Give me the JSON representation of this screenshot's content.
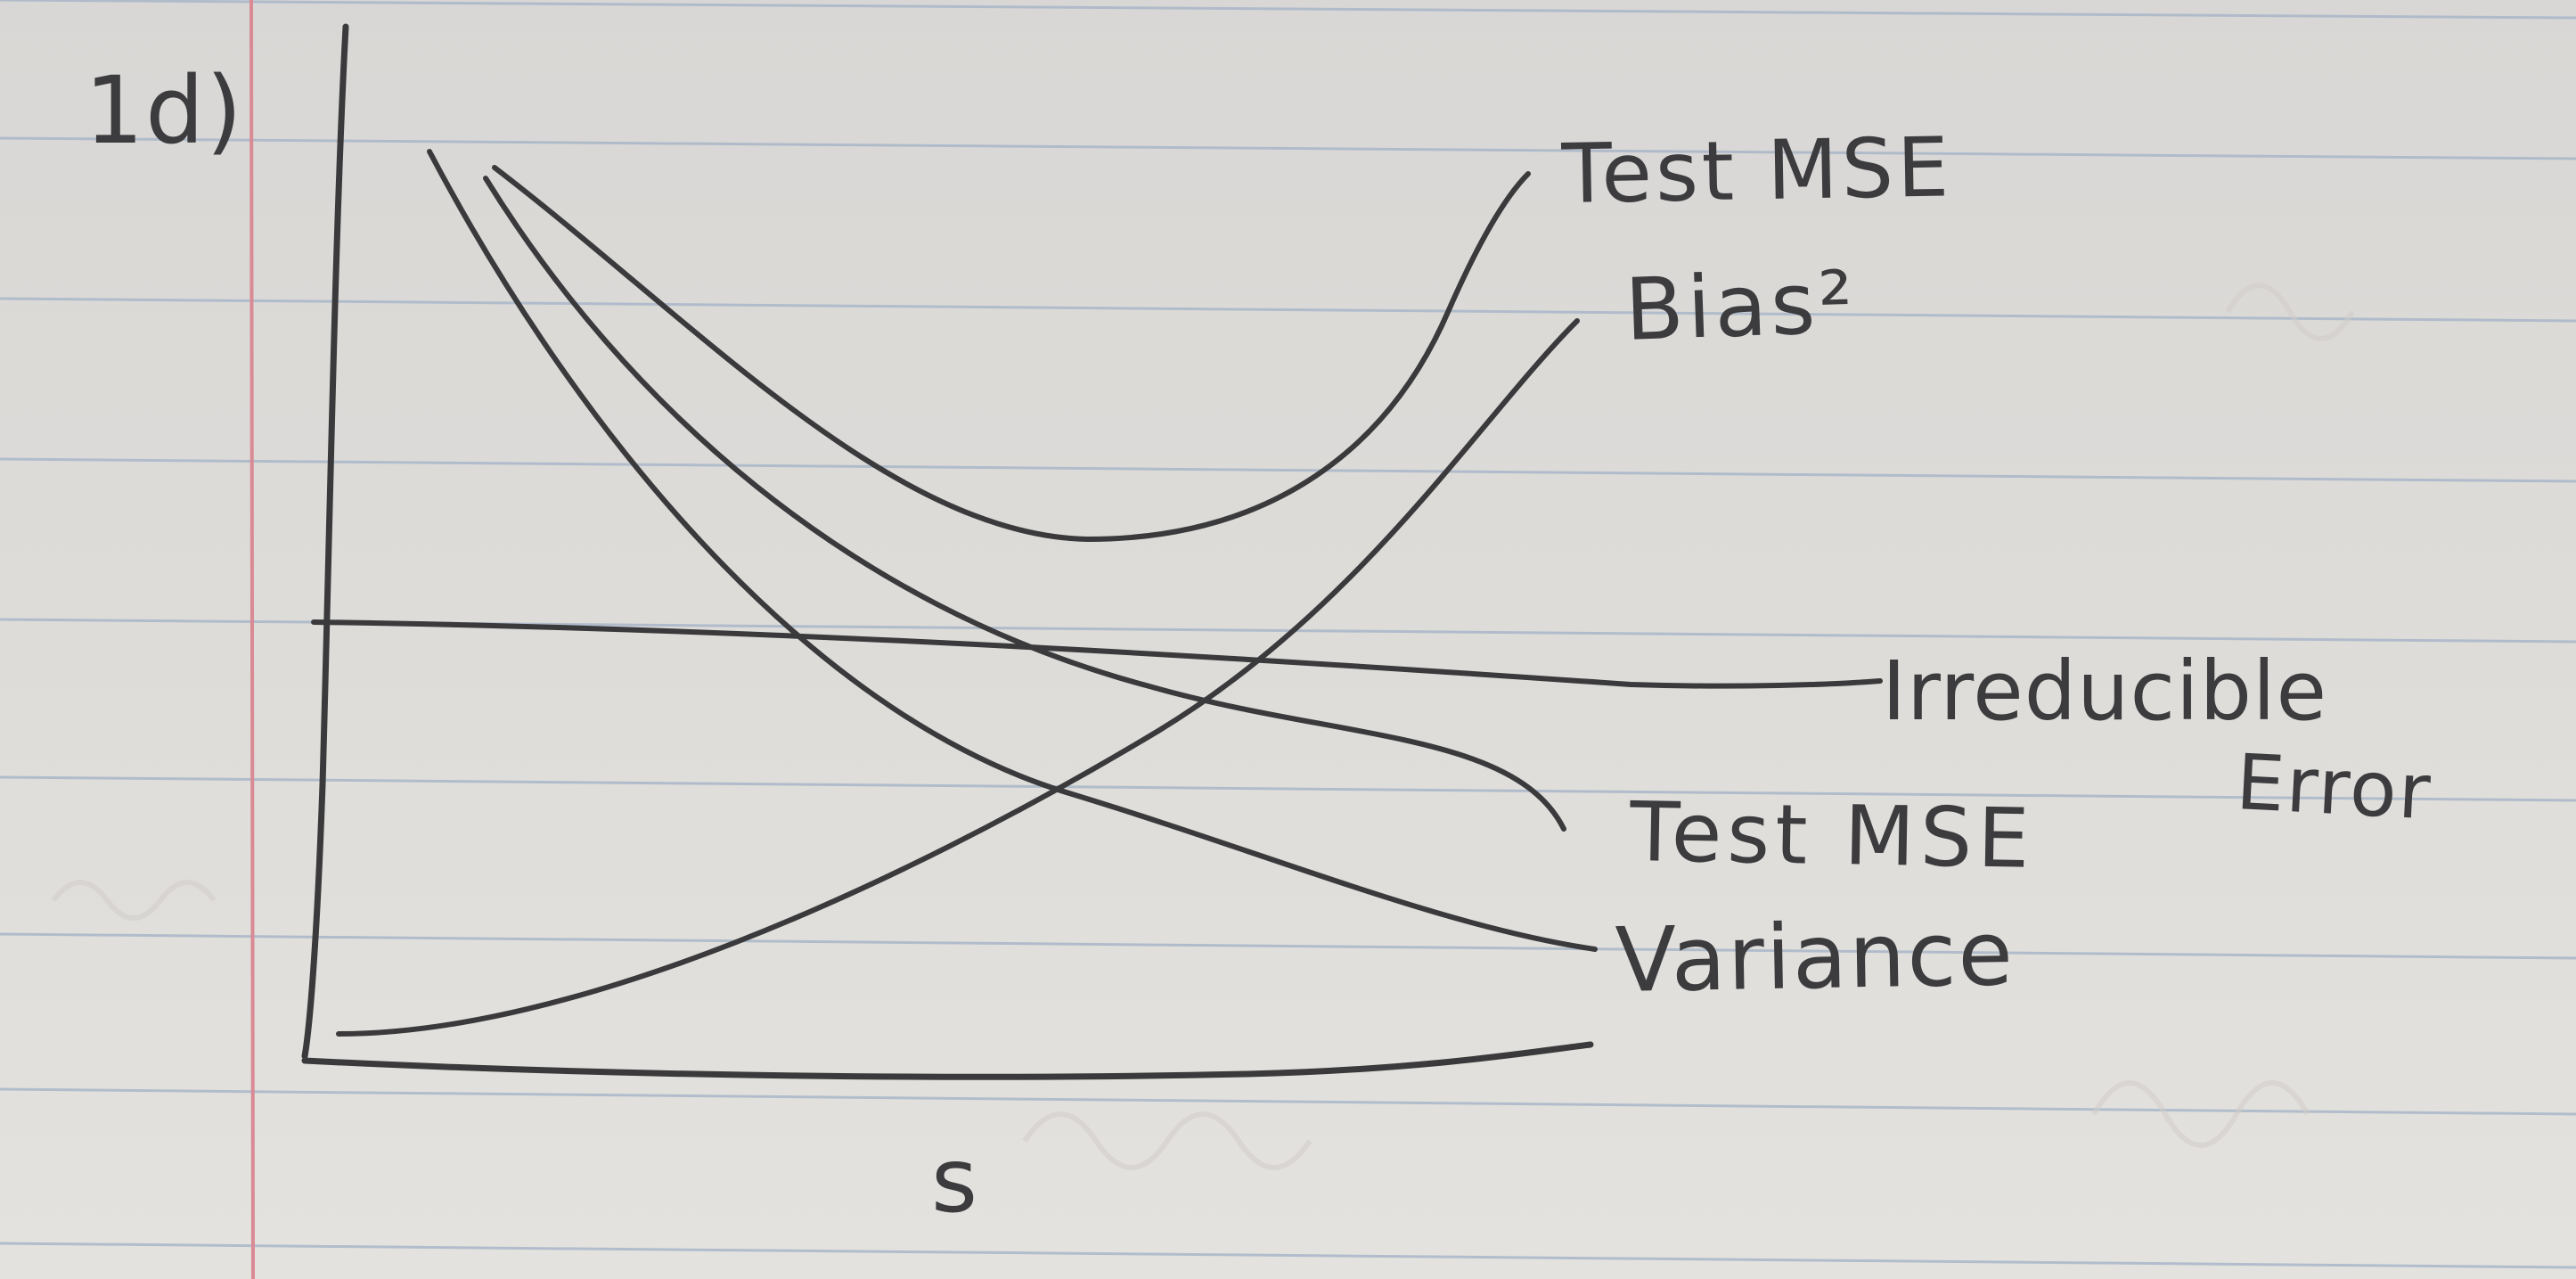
{
  "problem_label": "1d)",
  "x_axis_label": "s",
  "curves": [
    {
      "id": "test-mse-upper",
      "label": "Test MSE",
      "shape": "U-shaped"
    },
    {
      "id": "bias-squared",
      "label": "Bias²",
      "shape": "increasing"
    },
    {
      "id": "irreducible-error",
      "label_line1": "Irreducible",
      "label_line2": "Error",
      "shape": "flat"
    },
    {
      "id": "test-mse-lower",
      "label": "Test MSE",
      "shape": "decreasing"
    },
    {
      "id": "variance",
      "label": "Variance",
      "shape": "decreasing"
    }
  ],
  "colors": {
    "paper": "#dcdad7",
    "rule_line": "#a9b7c9",
    "margin_line": "#d98a94",
    "ink": "#3a3a3c"
  }
}
